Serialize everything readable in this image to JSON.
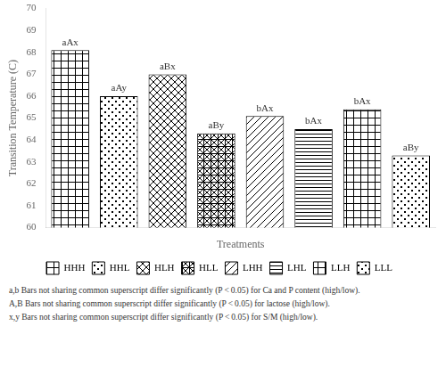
{
  "chart_data": {
    "type": "bar",
    "categories": [
      "HHH",
      "HHL",
      "HLH",
      "HLL",
      "LHH",
      "LHL",
      "LLH",
      "LLL"
    ],
    "values": [
      68.1,
      66.0,
      67.0,
      64.3,
      65.1,
      64.5,
      65.4,
      63.3
    ],
    "value_labels": [
      "aAx",
      "aAy",
      "aBx",
      "aBy",
      "bAx",
      "bAx",
      "bAx",
      "aBy"
    ],
    "data_labels": true,
    "xlabel": "Treatments",
    "ylabel": "Transition Temperature (C)",
    "ylim": [
      60,
      70
    ],
    "yticks": [
      60,
      61,
      62,
      63,
      64,
      65,
      66,
      67,
      68,
      69,
      70
    ],
    "color": "#000000",
    "grid": false,
    "legend": "bottom",
    "tick_labels": "y",
    "annotations": [
      "a,b Bars not sharing common superscript differ significantly (P < 0.05) for Ca and P content (high/low).",
      "A,B Bars not sharing common superscript differ significantly (P < 0.05) for lactose (high/low).",
      "x,y Bars not sharing common superscript differ significantly (P < 0.05) for S/M (high/low)."
    ]
  }
}
